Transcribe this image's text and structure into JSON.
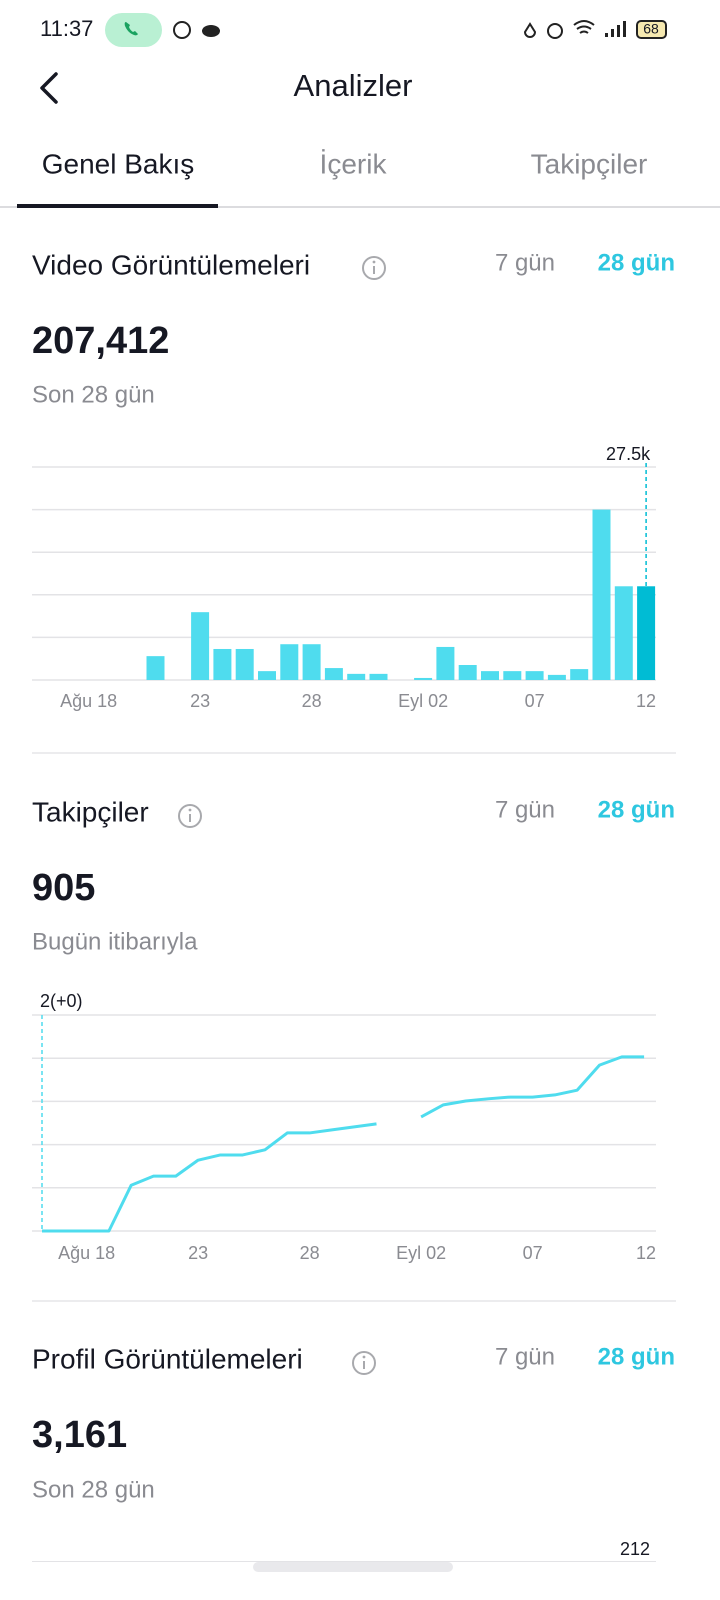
{
  "status_bar": {
    "time": "11:37",
    "battery": "68"
  },
  "header": {
    "title": "Analizler"
  },
  "tabs": [
    "Genel Bakış",
    "İçerik",
    "Takipçiler"
  ],
  "sections": [
    {
      "title": "Video Görüntülemeleri",
      "ranges": [
        "7 gün",
        "28 gün"
      ],
      "total": "207,412",
      "period": "Son 28 gün"
    },
    {
      "title": "Takipçiler",
      "ranges": [
        "7 gün",
        "28 gün"
      ],
      "total": "905",
      "period": "Bugün itibarıyla"
    },
    {
      "title": "Profil Görüntülemeleri",
      "ranges": [
        "7 gün",
        "28 gün"
      ],
      "total": "3,161",
      "period": "Son 28 gün",
      "chart_label": "212"
    }
  ],
  "chart_data": [
    {
      "type": "bar",
      "categories": [
        null,
        null,
        "Ağu 18",
        null,
        null,
        null,
        null,
        "23",
        null,
        null,
        null,
        null,
        "28",
        null,
        null,
        null,
        null,
        "Eyl 02",
        null,
        null,
        null,
        null,
        "07",
        null,
        null,
        null,
        null,
        "12"
      ],
      "values": [
        0,
        0,
        0,
        0,
        0,
        7000,
        0,
        19900,
        9100,
        9100,
        2600,
        10500,
        10500,
        3500,
        1800,
        1800,
        0,
        600,
        9700,
        4400,
        2600,
        2600,
        2600,
        1500,
        3200,
        50000,
        27500,
        27500
      ],
      "value_labels": [
        null,
        null,
        null,
        null,
        null,
        null,
        null,
        null,
        null,
        null,
        null,
        null,
        null,
        null,
        null,
        null,
        null,
        null,
        null,
        null,
        null,
        null,
        null,
        null,
        null,
        null,
        null,
        "27.5k"
      ],
      "color": "#4fdcee",
      "selected_color": "#00bcd4",
      "selected": 27,
      "ylim": [
        0,
        62500
      ],
      "ygrid": [
        0,
        12500,
        25000,
        37500,
        50000,
        62500
      ]
    },
    {
      "type": "line",
      "categories": [
        null,
        null,
        "Ağu 18",
        null,
        null,
        null,
        null,
        "23",
        null,
        null,
        null,
        null,
        "28",
        null,
        null,
        null,
        null,
        "Eyl 02",
        null,
        null,
        null,
        null,
        "07",
        null,
        null,
        null,
        null,
        "12"
      ],
      "values": [
        2,
        2,
        2,
        2,
        12.6,
        14.7,
        14.7,
        18.4,
        19.6,
        19.6,
        20.8,
        24.7,
        24.7,
        25.4,
        26.1,
        26.8,
        null,
        28.4,
        31.2,
        32.1,
        32.6,
        33.0,
        33.0,
        33.5,
        34.6,
        40.4,
        42.3,
        42.3
      ],
      "value_labels": [
        "2(+0)",
        null,
        null,
        null,
        null,
        null,
        null,
        null,
        null,
        null,
        null,
        null,
        null,
        null,
        null,
        null,
        null,
        null,
        null,
        null,
        null,
        null,
        null,
        null,
        null,
        null,
        null,
        null
      ],
      "color": "#4fdcee",
      "selected": 0,
      "ylim": [
        2,
        52
      ],
      "ygrid": [
        2,
        12,
        22,
        32,
        42,
        52
      ]
    }
  ]
}
